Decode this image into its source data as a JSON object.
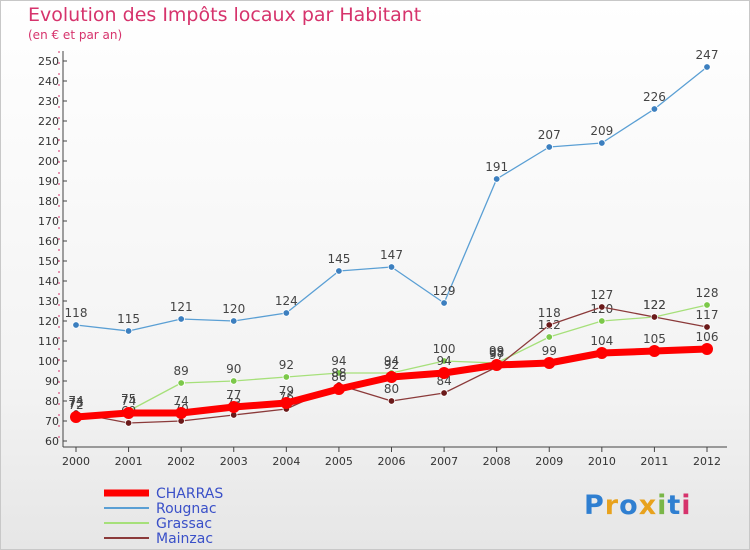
{
  "header": {
    "title": "Evolution des Impôts locaux par Habitant",
    "subtitle": "(en € et par an)"
  },
  "logo": {
    "text": "Proxiti",
    "letters": [
      {
        "ch": "P",
        "color": "#2f7fd1"
      },
      {
        "ch": "r",
        "color": "#e8a21d"
      },
      {
        "ch": "o",
        "color": "#2f7fd1"
      },
      {
        "ch": "x",
        "color": "#e8a21d"
      },
      {
        "ch": "i",
        "color": "#7ab648"
      },
      {
        "ch": "t",
        "color": "#2f7fd1"
      },
      {
        "ch": "i",
        "color": "#d6336c"
      }
    ]
  },
  "chart_data": {
    "type": "line",
    "x": [
      2000,
      2001,
      2002,
      2003,
      2004,
      2005,
      2006,
      2007,
      2008,
      2009,
      2010,
      2011,
      2012
    ],
    "ylim": [
      60,
      250
    ],
    "yticks": [
      60,
      70,
      80,
      90,
      100,
      110,
      120,
      130,
      140,
      150,
      160,
      170,
      180,
      190,
      200,
      210,
      220,
      230,
      240,
      250
    ],
    "grid": false,
    "legend_position": "bottom-left",
    "series": [
      {
        "name": "Rougnac",
        "color": "#5a9fd4",
        "dot": "#3c7fbf",
        "width": 1.3,
        "values": [
          118,
          115,
          121,
          120,
          124,
          145,
          147,
          129,
          191,
          207,
          209,
          226,
          247
        ],
        "labels": [
          "118",
          "115",
          "121",
          "120",
          "124",
          "145",
          "147",
          "129",
          "191",
          "207",
          "209",
          "226",
          "247"
        ]
      },
      {
        "name": "Grassac",
        "color": "#a6e07a",
        "dot": "#7cc84a",
        "width": 1.3,
        "values": [
          73,
          75,
          89,
          90,
          92,
          94,
          94,
          100,
          99,
          112,
          120,
          122,
          128
        ],
        "labels": [
          "73",
          "75",
          "89",
          "90",
          "92",
          "94",
          "94",
          "100",
          "99",
          "112",
          "120",
          "122",
          "128"
        ]
      },
      {
        "name": "Mainzac",
        "color": "#8b3a3a",
        "dot": "#6b1a1a",
        "width": 1.3,
        "values": [
          74,
          69,
          70,
          73,
          76,
          88,
          80,
          84,
          97,
          118,
          127,
          122,
          117
        ],
        "labels": [
          "74",
          "69",
          "70",
          "73",
          "76",
          "88",
          "80",
          "84",
          "97",
          "118",
          "127",
          "122",
          "117"
        ]
      },
      {
        "name": "CHARRAS",
        "color": "#ff0000",
        "dot": "#ff0000",
        "width": 7,
        "values": [
          72,
          74,
          74,
          77,
          79,
          86,
          92,
          94,
          98,
          99,
          104,
          105,
          106
        ],
        "labels": [
          "72",
          "74",
          "74",
          "77",
          "79",
          "86",
          "92",
          "94",
          "98",
          "99",
          "104",
          "105",
          "106"
        ]
      }
    ],
    "legend_order": [
      "CHARRAS",
      "Rougnac",
      "Grassac",
      "Mainzac"
    ]
  }
}
